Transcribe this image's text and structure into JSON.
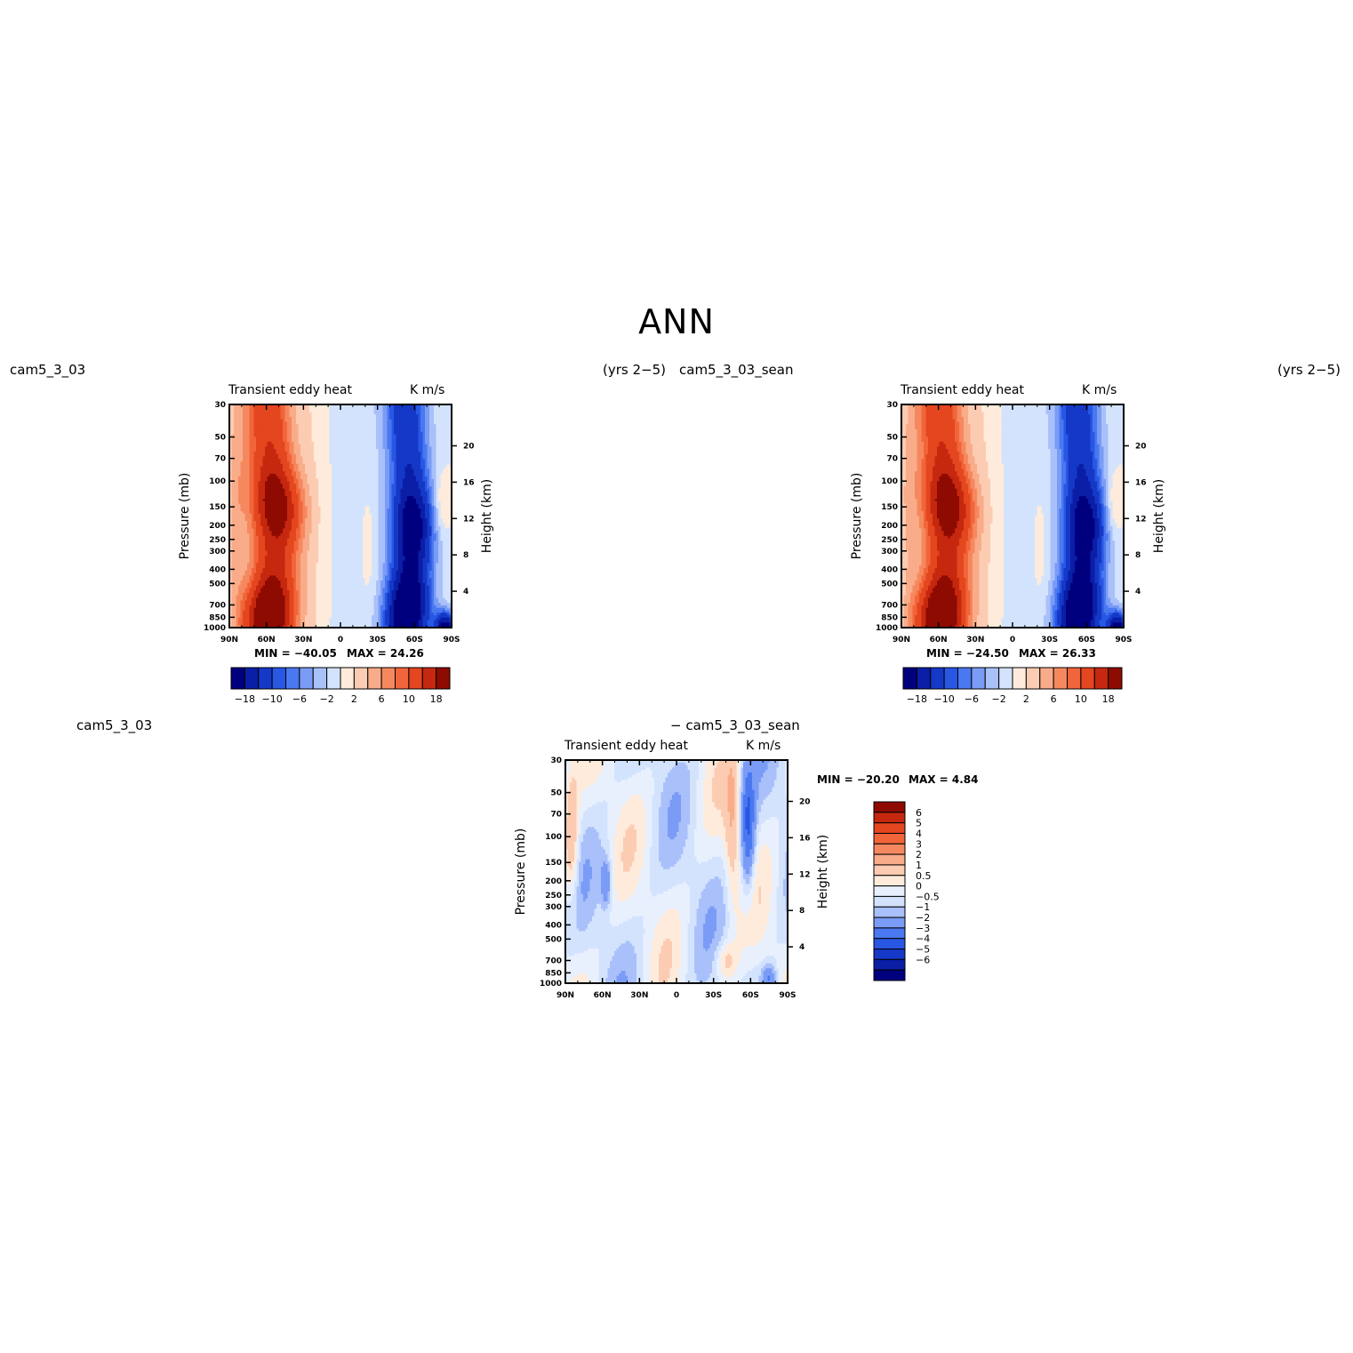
{
  "figure": {
    "title": "ANN"
  },
  "labels": {
    "case_left": "cam5_3_03",
    "years_left": "(yrs 2−5)",
    "case_right": "cam5_3_03_sean",
    "years_right": "(yrs 2−5)",
    "diff_left": "cam5_3_03",
    "diff_right": "− cam5_3_03_sean"
  },
  "colors": {
    "div20": [
      "#00007f",
      "#0a1ea6",
      "#1538c7",
      "#2857e4",
      "#4a78f0",
      "#7a9cf6",
      "#a9c0fa",
      "#d3e3fd",
      "#feebdb",
      "#fcccb2",
      "#f9ac89",
      "#f6885f",
      "#f2653a",
      "#e4461f",
      "#c6280f",
      "#8e0b02"
    ],
    "div_diff": [
      "#00007f",
      "#0a1ea6",
      "#1538c7",
      "#2857e4",
      "#4a78f0",
      "#7a9cf6",
      "#a9c0fa",
      "#d3e3fd",
      "#e8f0fe",
      "#feebdb",
      "#fcccb2",
      "#f9ac89",
      "#f6885f",
      "#f2653a",
      "#e4461f",
      "#c6280f",
      "#8e0b02"
    ]
  },
  "chart_data": [
    {
      "type": "heatmap",
      "name": "cam5_3_03",
      "title": "Transient eddy heat",
      "units": "K m/s",
      "xlabel": "",
      "ylabel": "Pressure (mb)",
      "ylabel_right": "Height (km)",
      "x_ticks": [
        "90N",
        "60N",
        "30N",
        "0",
        "30S",
        "60S",
        "90S"
      ],
      "y_ticks": [
        30,
        50,
        70,
        100,
        150,
        200,
        250,
        300,
        400,
        500,
        700,
        850,
        1000
      ],
      "y_ticks_right": [
        4,
        8,
        12,
        16,
        20
      ],
      "ylim": [
        1000,
        30
      ],
      "y_scale": "log",
      "min_label": "MIN = −40.05",
      "max_label": "MAX =   24.26",
      "colorbar_labels": [
        "−18",
        "−10",
        "−6",
        "−2",
        "2",
        "6",
        "10",
        "18"
      ],
      "field": "base"
    },
    {
      "type": "heatmap",
      "name": "cam5_3_03_sean",
      "title": "Transient eddy heat",
      "units": "K m/s",
      "xlabel": "",
      "ylabel": "Pressure (mb)",
      "ylabel_right": "Height (km)",
      "x_ticks": [
        "90N",
        "60N",
        "30N",
        "0",
        "30S",
        "60S",
        "90S"
      ],
      "y_ticks": [
        30,
        50,
        70,
        100,
        150,
        200,
        250,
        300,
        400,
        500,
        700,
        850,
        1000
      ],
      "y_ticks_right": [
        4,
        8,
        12,
        16,
        20
      ],
      "ylim": [
        1000,
        30
      ],
      "y_scale": "log",
      "min_label": "MIN = −24.50",
      "max_label": "MAX =   26.33",
      "colorbar_labels": [
        "−18",
        "−10",
        "−6",
        "−2",
        "2",
        "6",
        "10",
        "18"
      ],
      "field": "base2"
    },
    {
      "type": "heatmap",
      "name": "difference",
      "title": "Transient eddy heat",
      "units": "K m/s",
      "xlabel": "",
      "ylabel": "Pressure (mb)",
      "ylabel_right": "Height (km)",
      "x_ticks": [
        "90N",
        "60N",
        "30N",
        "0",
        "30S",
        "60S",
        "90S"
      ],
      "y_ticks": [
        30,
        50,
        70,
        100,
        150,
        200,
        250,
        300,
        400,
        500,
        700,
        850,
        1000
      ],
      "y_ticks_right": [
        4,
        8,
        12,
        16,
        20
      ],
      "ylim": [
        1000,
        30
      ],
      "y_scale": "log",
      "min_label": "MIN = −20.20",
      "max_label": "MAX =    4.84",
      "colorbar_labels": [
        "6",
        "5",
        "4",
        "3",
        "2",
        "1",
        "0.5",
        "0",
        "−0.5",
        "−1",
        "−2",
        "−3",
        "−4",
        "−5",
        "−6"
      ],
      "field": "diff"
    }
  ]
}
